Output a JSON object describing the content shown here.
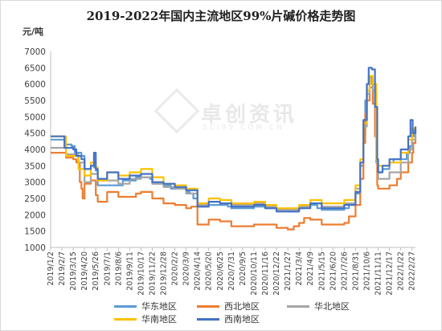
{
  "chart_data": {
    "type": "line",
    "title": "2019-2022年国内主流地区99%片碱价格走势图",
    "ylabel": "元/吨",
    "xlabel": "",
    "ylim": [
      1000,
      7000
    ],
    "yticks": [
      1000,
      1500,
      2000,
      2500,
      3000,
      3500,
      4000,
      4500,
      5000,
      5500,
      6000,
      6500,
      7000
    ],
    "xticks": [
      "2019/1/2",
      "2019/2/7",
      "2019/3/15",
      "2019/4/20",
      "2019/5/26",
      "2019/7/1",
      "2019/8/6",
      "2019/9/11",
      "2019/10/17",
      "2019/11/22",
      "2019/12/28",
      "2020/2/2",
      "2020/3/9",
      "2020/4/14",
      "2020/5/20",
      "2020/6/25",
      "2020/7/31",
      "2020/9/5",
      "2020/10/11",
      "2020/11/16",
      "2020/12/22",
      "2021/1/27",
      "2021/3/4",
      "2021/4/9",
      "2021/5/15",
      "2021/6/20",
      "2021/7/26",
      "2021/8/31",
      "2021/10/6",
      "2021/11/11",
      "2021/12/17",
      "2022/1/22",
      "2022/2/27"
    ],
    "grid": false,
    "legend_position": "bottom",
    "x_start": "2019/1/2",
    "x_end": "2022/3/10",
    "series": [
      {
        "name": "华东地区",
        "color": "#5b9bd5",
        "points": [
          [
            "2019/1/2",
            4300
          ],
          [
            "2019/2/10",
            4300
          ],
          [
            "2019/2/15",
            4150
          ],
          [
            "2019/3/10",
            4100
          ],
          [
            "2019/3/20",
            3900
          ],
          [
            "2019/4/10",
            3800
          ],
          [
            "2019/4/20",
            3400
          ],
          [
            "2019/5/10",
            3500
          ],
          [
            "2019/5/20",
            3450
          ],
          [
            "2019/5/26",
            3350
          ],
          [
            "2019/6/1",
            2900
          ],
          [
            "2019/7/10",
            2900
          ],
          [
            "2019/8/6",
            2900
          ],
          [
            "2019/8/20",
            3050
          ],
          [
            "2019/9/20",
            3050
          ],
          [
            "2019/10/1",
            3150
          ],
          [
            "2019/11/15",
            3100
          ],
          [
            "2019/11/22",
            2950
          ],
          [
            "2019/12/28",
            2900
          ],
          [
            "2020/1/20",
            2800
          ],
          [
            "2020/2/2",
            2800
          ],
          [
            "2020/3/9",
            2700
          ],
          [
            "2020/3/20",
            2650
          ],
          [
            "2020/4/1",
            2500
          ],
          [
            "2020/4/14",
            2250
          ],
          [
            "2020/5/20",
            2300
          ],
          [
            "2020/6/25",
            2300
          ],
          [
            "2020/7/20",
            2250
          ],
          [
            "2020/7/31",
            2200
          ],
          [
            "2020/9/5",
            2200
          ],
          [
            "2020/10/11",
            2250
          ],
          [
            "2020/11/16",
            2200
          ],
          [
            "2020/12/22",
            2150
          ],
          [
            "2021/1/27",
            2100
          ],
          [
            "2021/2/20",
            2150
          ],
          [
            "2021/3/4",
            2200
          ],
          [
            "2021/3/20",
            2300
          ],
          [
            "2021/4/9",
            2300
          ],
          [
            "2021/5/1",
            2200
          ],
          [
            "2021/5/15",
            2150
          ],
          [
            "2021/6/20",
            2150
          ],
          [
            "2021/7/26",
            2200
          ],
          [
            "2021/8/10",
            2350
          ],
          [
            "2021/8/31",
            2650
          ],
          [
            "2021/9/15",
            3500
          ],
          [
            "2021/9/25",
            4500
          ],
          [
            "2021/10/1",
            5500
          ],
          [
            "2021/10/6",
            6000
          ],
          [
            "2021/10/12",
            6200
          ],
          [
            "2021/10/22",
            6000
          ],
          [
            "2021/11/1",
            5100
          ],
          [
            "2021/11/5",
            3600
          ],
          [
            "2021/11/11",
            3300
          ],
          [
            "2021/11/25",
            3400
          ],
          [
            "2021/12/17",
            3600
          ],
          [
            "2021/12/30",
            3700
          ],
          [
            "2022/1/22",
            3700
          ],
          [
            "2022/2/10",
            3900
          ],
          [
            "2022/2/20",
            4100
          ],
          [
            "2022/2/27",
            4400
          ],
          [
            "2022/3/5",
            4600
          ],
          [
            "2022/3/10",
            4500
          ]
        ]
      },
      {
        "name": "西北地区",
        "color": "#ed7d31",
        "points": [
          [
            "2019/1/2",
            3900
          ],
          [
            "2019/2/7",
            3900
          ],
          [
            "2019/2/20",
            3750
          ],
          [
            "2019/3/15",
            3700
          ],
          [
            "2019/3/25",
            3600
          ],
          [
            "2019/4/5",
            3000
          ],
          [
            "2019/4/10",
            2800
          ],
          [
            "2019/4/14",
            2500
          ],
          [
            "2019/4/20",
            2950
          ],
          [
            "2019/5/10",
            3050
          ],
          [
            "2019/5/26",
            2600
          ],
          [
            "2019/6/1",
            2400
          ],
          [
            "2019/7/1",
            2700
          ],
          [
            "2019/8/6",
            2550
          ],
          [
            "2019/9/11",
            2550
          ],
          [
            "2019/10/1",
            2650
          ],
          [
            "2019/10/17",
            2700
          ],
          [
            "2019/11/22",
            2500
          ],
          [
            "2019/12/28",
            2350
          ],
          [
            "2020/2/2",
            2300
          ],
          [
            "2020/3/9",
            2200
          ],
          [
            "2020/3/25",
            2250
          ],
          [
            "2020/4/14",
            1700
          ],
          [
            "2020/5/20",
            1850
          ],
          [
            "2020/6/25",
            1800
          ],
          [
            "2020/7/31",
            1650
          ],
          [
            "2020/9/5",
            1650
          ],
          [
            "2020/10/11",
            1700
          ],
          [
            "2020/11/16",
            1700
          ],
          [
            "2020/12/22",
            1600
          ],
          [
            "2021/1/27",
            1550
          ],
          [
            "2021/2/15",
            1650
          ],
          [
            "2021/3/4",
            1750
          ],
          [
            "2021/3/20",
            1900
          ],
          [
            "2021/4/9",
            1850
          ],
          [
            "2021/5/15",
            1700
          ],
          [
            "2021/6/20",
            1700
          ],
          [
            "2021/7/26",
            1750
          ],
          [
            "2021/8/10",
            1950
          ],
          [
            "2021/8/31",
            2300
          ],
          [
            "2021/9/15",
            3100
          ],
          [
            "2021/9/25",
            4200
          ],
          [
            "2021/10/1",
            5100
          ],
          [
            "2021/10/6",
            5500
          ],
          [
            "2021/10/15",
            5900
          ],
          [
            "2021/10/25",
            5400
          ],
          [
            "2021/11/1",
            4400
          ],
          [
            "2021/11/8",
            2900
          ],
          [
            "2021/11/11",
            2800
          ],
          [
            "2021/12/17",
            2900
          ],
          [
            "2022/1/10",
            3100
          ],
          [
            "2022/1/22",
            3300
          ],
          [
            "2022/2/15",
            3600
          ],
          [
            "2022/2/27",
            3900
          ],
          [
            "2022/3/3",
            4200
          ],
          [
            "2022/3/10",
            4400
          ]
        ]
      },
      {
        "name": "华北地区",
        "color": "#a5a5a5",
        "points": [
          [
            "2019/1/2",
            4050
          ],
          [
            "2019/2/7",
            4050
          ],
          [
            "2019/2/20",
            3850
          ],
          [
            "2019/3/15",
            3850
          ],
          [
            "2019/4/1",
            3600
          ],
          [
            "2019/4/20",
            3000
          ],
          [
            "2019/5/10",
            3250
          ],
          [
            "2019/5/26",
            3250
          ],
          [
            "2019/6/1",
            3050
          ],
          [
            "2019/7/1",
            3050
          ],
          [
            "2019/8/6",
            2950
          ],
          [
            "2019/9/11",
            3100
          ],
          [
            "2019/10/17",
            3150
          ],
          [
            "2019/11/22",
            2950
          ],
          [
            "2019/12/28",
            2850
          ],
          [
            "2020/2/2",
            2800
          ],
          [
            "2020/3/9",
            2650
          ],
          [
            "2020/4/14",
            2300
          ],
          [
            "2020/5/20",
            2400
          ],
          [
            "2020/6/25",
            2350
          ],
          [
            "2020/7/31",
            2300
          ],
          [
            "2020/9/5",
            2300
          ],
          [
            "2020/10/11",
            2350
          ],
          [
            "2020/11/16",
            2250
          ],
          [
            "2020/12/22",
            2150
          ],
          [
            "2021/1/27",
            2150
          ],
          [
            "2021/3/4",
            2250
          ],
          [
            "2021/4/9",
            2350
          ],
          [
            "2021/5/15",
            2250
          ],
          [
            "2021/6/20",
            2250
          ],
          [
            "2021/7/26",
            2350
          ],
          [
            "2021/8/31",
            2800
          ],
          [
            "2021/9/15",
            3600
          ],
          [
            "2021/9/25",
            4700
          ],
          [
            "2021/10/6",
            5700
          ],
          [
            "2021/10/15",
            6100
          ],
          [
            "2021/10/25",
            5800
          ],
          [
            "2021/11/5",
            3600
          ],
          [
            "2021/11/11",
            3100
          ],
          [
            "2021/12/17",
            3300
          ],
          [
            "2022/1/22",
            3600
          ],
          [
            "2022/2/15",
            4000
          ],
          [
            "2022/2/27",
            4300
          ],
          [
            "2022/3/10",
            4500
          ]
        ]
      },
      {
        "name": "华南地区",
        "color": "#ffc000",
        "points": [
          [
            "2019/1/2",
            4400
          ],
          [
            "2019/2/7",
            4400
          ],
          [
            "2019/2/20",
            3800
          ],
          [
            "2019/3/15",
            3800
          ],
          [
            "2019/4/1",
            3400
          ],
          [
            "2019/4/20",
            3200
          ],
          [
            "2019/5/10",
            3600
          ],
          [
            "2019/5/26",
            3450
          ],
          [
            "2019/6/1",
            3050
          ],
          [
            "2019/7/1",
            3300
          ],
          [
            "2019/8/6",
            3200
          ],
          [
            "2019/9/11",
            3300
          ],
          [
            "2019/10/17",
            3400
          ],
          [
            "2019/11/22",
            3150
          ],
          [
            "2019/12/28",
            2950
          ],
          [
            "2020/2/2",
            2900
          ],
          [
            "2020/3/9",
            2800
          ],
          [
            "2020/4/14",
            2350
          ],
          [
            "2020/5/20",
            2500
          ],
          [
            "2020/6/25",
            2450
          ],
          [
            "2020/7/31",
            2350
          ],
          [
            "2020/9/5",
            2350
          ],
          [
            "2020/10/11",
            2400
          ],
          [
            "2020/11/16",
            2300
          ],
          [
            "2020/12/22",
            2200
          ],
          [
            "2021/1/27",
            2200
          ],
          [
            "2021/3/4",
            2300
          ],
          [
            "2021/4/9",
            2450
          ],
          [
            "2021/5/15",
            2350
          ],
          [
            "2021/6/20",
            2350
          ],
          [
            "2021/7/26",
            2450
          ],
          [
            "2021/8/31",
            2900
          ],
          [
            "2021/9/15",
            3700
          ],
          [
            "2021/9/25",
            4800
          ],
          [
            "2021/10/6",
            5800
          ],
          [
            "2021/10/15",
            6250
          ],
          [
            "2021/10/25",
            6000
          ],
          [
            "2021/11/5",
            3700
          ],
          [
            "2021/11/11",
            3500
          ],
          [
            "2021/12/17",
            3600
          ],
          [
            "2022/1/22",
            3900
          ],
          [
            "2022/2/15",
            4300
          ],
          [
            "2022/2/27",
            4650
          ],
          [
            "2022/3/10",
            4700
          ]
        ]
      },
      {
        "name": "西南地区",
        "color": "#4472c4",
        "points": [
          [
            "2019/1/2",
            4400
          ],
          [
            "2019/2/7",
            4400
          ],
          [
            "2019/2/15",
            4050
          ],
          [
            "2019/3/15",
            4000
          ],
          [
            "2019/3/25",
            3800
          ],
          [
            "2019/4/10",
            3700
          ],
          [
            "2019/4/20",
            3400
          ],
          [
            "2019/5/10",
            3500
          ],
          [
            "2019/5/20",
            3900
          ],
          [
            "2019/5/26",
            3400
          ],
          [
            "2019/6/1",
            3100
          ],
          [
            "2019/7/1",
            3300
          ],
          [
            "2019/8/6",
            3100
          ],
          [
            "2019/9/11",
            3200
          ],
          [
            "2019/10/17",
            3250
          ],
          [
            "2019/11/22",
            3000
          ],
          [
            "2019/12/28",
            2950
          ],
          [
            "2020/2/2",
            2850
          ],
          [
            "2020/3/9",
            2750
          ],
          [
            "2020/4/14",
            2250
          ],
          [
            "2020/5/20",
            2400
          ],
          [
            "2020/6/25",
            2350
          ],
          [
            "2020/7/31",
            2250
          ],
          [
            "2020/9/5",
            2250
          ],
          [
            "2020/10/11",
            2300
          ],
          [
            "2020/11/16",
            2200
          ],
          [
            "2020/12/22",
            2100
          ],
          [
            "2021/1/27",
            2100
          ],
          [
            "2021/3/4",
            2200
          ],
          [
            "2021/4/9",
            2350
          ],
          [
            "2021/5/15",
            2200
          ],
          [
            "2021/6/20",
            2200
          ],
          [
            "2021/7/26",
            2300
          ],
          [
            "2021/8/31",
            2700
          ],
          [
            "2021/9/15",
            3600
          ],
          [
            "2021/9/25",
            4900
          ],
          [
            "2021/10/6",
            6000
          ],
          [
            "2021/10/12",
            6500
          ],
          [
            "2021/10/22",
            6450
          ],
          [
            "2021/11/1",
            5300
          ],
          [
            "2021/11/8",
            3700
          ],
          [
            "2021/11/11",
            3300
          ],
          [
            "2021/11/25",
            3500
          ],
          [
            "2021/12/17",
            3700
          ],
          [
            "2022/1/22",
            4000
          ],
          [
            "2022/2/15",
            4400
          ],
          [
            "2022/2/22",
            4900
          ],
          [
            "2022/3/1",
            4500
          ],
          [
            "2022/3/10",
            4700
          ]
        ]
      }
    ]
  },
  "watermark": {
    "text": "卓创资讯",
    "sub": "SCI99.COM.CN"
  }
}
